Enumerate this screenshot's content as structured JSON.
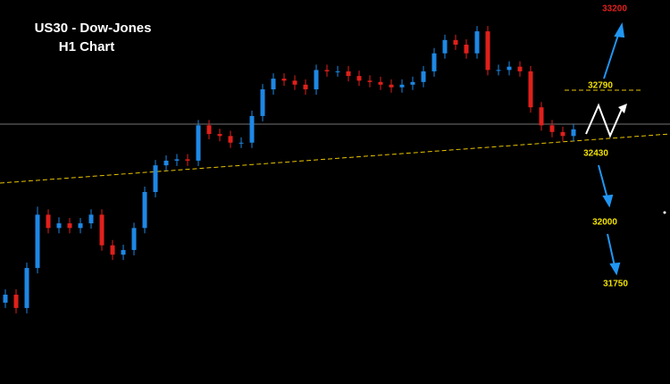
{
  "chart_data": {
    "type": "candlestick",
    "title": "US30 - Dow-Jones",
    "subtitle": "H1 Chart",
    "up_color": "#1e88e5",
    "down_color": "#e0201b",
    "ylim": [
      30590,
      33470
    ],
    "candles": [
      [
        31200,
        31300,
        31160,
        31260
      ],
      [
        31260,
        31300,
        31120,
        31160
      ],
      [
        31160,
        31500,
        31120,
        31460
      ],
      [
        31460,
        31920,
        31420,
        31860
      ],
      [
        31860,
        31900,
        31720,
        31760
      ],
      [
        31760,
        31840,
        31720,
        31795
      ],
      [
        31795,
        31835,
        31720,
        31760
      ],
      [
        31760,
        31835,
        31720,
        31795
      ],
      [
        31795,
        31900,
        31755,
        31860
      ],
      [
        31860,
        31900,
        31590,
        31630
      ],
      [
        31630,
        31670,
        31520,
        31560
      ],
      [
        31560,
        31635,
        31520,
        31595
      ],
      [
        31595,
        31800,
        31555,
        31760
      ],
      [
        31760,
        32070,
        31720,
        32030
      ],
      [
        32030,
        32270,
        31990,
        32230
      ],
      [
        32230,
        32305,
        32190,
        32265
      ],
      [
        32265,
        32315,
        32225,
        32275
      ],
      [
        32275,
        32315,
        32225,
        32265
      ],
      [
        32265,
        32570,
        32225,
        32530
      ],
      [
        32530,
        32570,
        32425,
        32465
      ],
      [
        32465,
        32505,
        32410,
        32450
      ],
      [
        32450,
        32490,
        32360,
        32400
      ],
      [
        32400,
        32440,
        32360,
        32400
      ],
      [
        32400,
        32640,
        32360,
        32600
      ],
      [
        32600,
        32840,
        32560,
        32800
      ],
      [
        32800,
        32920,
        32760,
        32880
      ],
      [
        32880,
        32920,
        32825,
        32865
      ],
      [
        32865,
        32905,
        32795,
        32835
      ],
      [
        32835,
        32875,
        32760,
        32800
      ],
      [
        32800,
        32985,
        32760,
        32945
      ],
      [
        32945,
        32985,
        32895,
        32935
      ],
      [
        32935,
        32975,
        32895,
        32935
      ],
      [
        32935,
        32975,
        32860,
        32900
      ],
      [
        32900,
        32940,
        32825,
        32865
      ],
      [
        32865,
        32905,
        32815,
        32855
      ],
      [
        32855,
        32895,
        32795,
        32835
      ],
      [
        32835,
        32875,
        32775,
        32815
      ],
      [
        32815,
        32875,
        32775,
        32835
      ],
      [
        32835,
        32895,
        32795,
        32855
      ],
      [
        32855,
        32975,
        32815,
        32935
      ],
      [
        32935,
        33110,
        32895,
        33070
      ],
      [
        33070,
        33210,
        33030,
        33170
      ],
      [
        33170,
        33210,
        33095,
        33135
      ],
      [
        33135,
        33175,
        33030,
        33070
      ],
      [
        33070,
        33275,
        33030,
        33235
      ],
      [
        33235,
        33275,
        32905,
        32945
      ],
      [
        32945,
        32985,
        32905,
        32945
      ],
      [
        32945,
        33010,
        32905,
        32970
      ],
      [
        32970,
        33010,
        32895,
        32935
      ],
      [
        32935,
        32975,
        32625,
        32665
      ],
      [
        32665,
        32705,
        32490,
        32530
      ],
      [
        32530,
        32570,
        32440,
        32480
      ],
      [
        32480,
        32520,
        32410,
        32450
      ],
      [
        32450,
        32540,
        32410,
        32500
      ]
    ],
    "levels": [
      33200,
      32790,
      32430,
      32000,
      31750
    ]
  }
}
